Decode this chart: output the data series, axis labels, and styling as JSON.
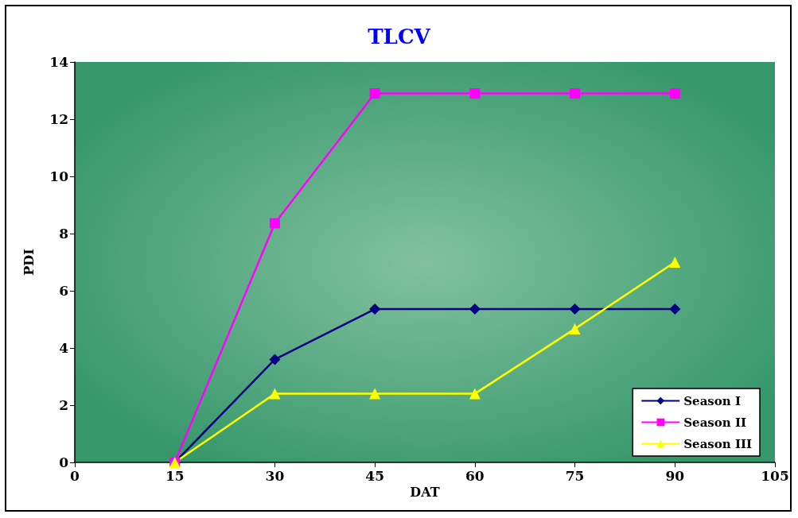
{
  "chart_data": {
    "type": "line",
    "title": "TLCV",
    "xlabel": "DAT",
    "ylabel": "PDI",
    "x": [
      15,
      30,
      45,
      60,
      75,
      90
    ],
    "series": [
      {
        "name": "Season I",
        "color": "#000080",
        "marker": "diamond",
        "values": [
          0,
          3.6,
          5.36,
          5.36,
          5.36,
          5.36
        ]
      },
      {
        "name": "Season II",
        "color": "#ff00ff",
        "marker": "square",
        "values": [
          0,
          8.36,
          12.9,
          12.9,
          12.9,
          12.9
        ]
      },
      {
        "name": "Season III",
        "color": "#ffff00",
        "marker": "triangle",
        "values": [
          0,
          2.4,
          2.4,
          2.4,
          4.67,
          7.0
        ]
      }
    ],
    "xlim": [
      0,
      105
    ],
    "xticks": [
      0,
      15,
      30,
      45,
      60,
      75,
      90,
      105
    ],
    "ylim": [
      0,
      14
    ],
    "yticks": [
      0,
      2,
      4,
      6,
      8,
      10,
      12,
      14
    ],
    "grid": false,
    "legend": "bottom right"
  }
}
